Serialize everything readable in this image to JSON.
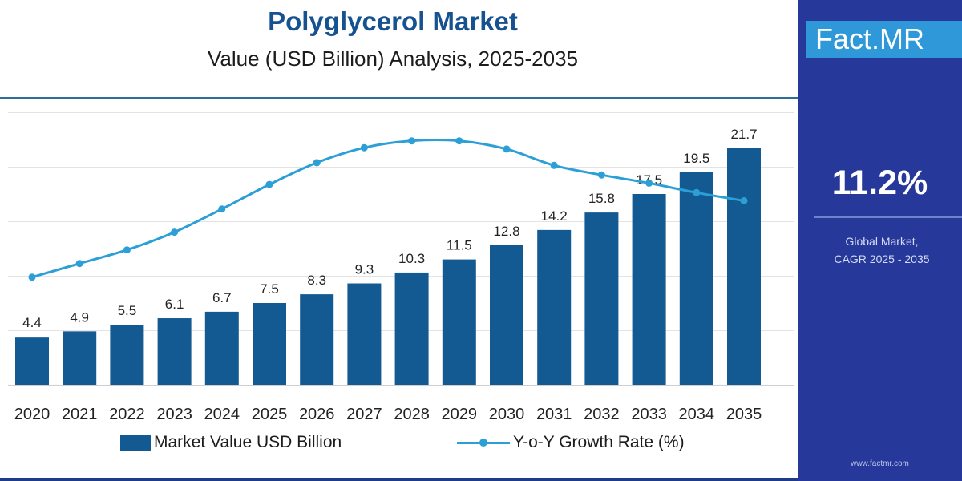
{
  "header": {
    "title": "Polyglycerol Market",
    "subtitle": "Value (USD Billion) Analysis, 2025-2035"
  },
  "side_panel": {
    "logo_text": "Fact.MR",
    "cagr_value": "11.2%",
    "cagr_label_line1": "Global Market,",
    "cagr_label_line2": "CAGR 2025 - 2035",
    "website": "www.factmr.com"
  },
  "colors": {
    "bar": "#135a92",
    "line": "#2c9fd6",
    "title": "#16528f",
    "panel": "#26389a"
  },
  "chart_data": {
    "type": "bar",
    "categories": [
      "2020",
      "2021",
      "2022",
      "2023",
      "2024",
      "2025",
      "2026",
      "2027",
      "2028",
      "2029",
      "2030",
      "2031",
      "2032",
      "2033",
      "2034",
      "2035"
    ],
    "series": [
      {
        "name": "Market Value USD Billion",
        "type": "bar",
        "values": [
          4.4,
          4.9,
          5.5,
          6.1,
          6.7,
          7.5,
          8.3,
          9.3,
          10.3,
          11.5,
          12.8,
          14.2,
          15.8,
          17.5,
          19.5,
          21.7
        ]
      },
      {
        "name": "Y-o-Y Growth Rate (%)",
        "type": "line",
        "values": [
          7.9,
          8.9,
          9.9,
          11.2,
          12.9,
          14.7,
          16.3,
          17.4,
          17.9,
          17.9,
          17.3,
          16.1,
          15.4,
          14.8,
          14.1,
          13.5
        ]
      }
    ],
    "ylim": [
      0,
      25
    ],
    "y2lim": [
      0,
      20
    ],
    "grid": true,
    "legend_position": "bottom"
  }
}
